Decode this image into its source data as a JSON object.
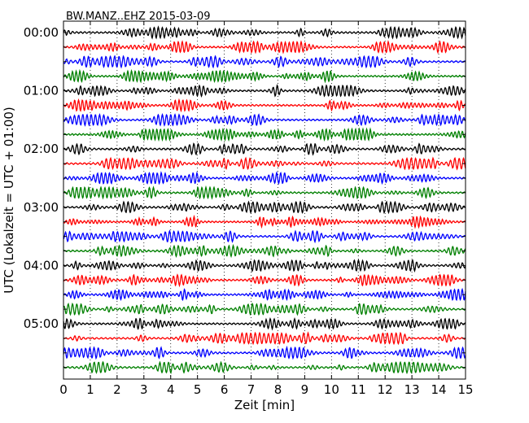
{
  "chart_data": {
    "type": "line",
    "title": "BW.MANZ..EHZ 2015-03-09",
    "xlabel": "Zeit  [min]",
    "ylabel": "UTC (Lokalzeit = UTC + 01:00)",
    "xlim": [
      0,
      15
    ],
    "x_ticks": [
      "0",
      "1",
      "2",
      "3",
      "4",
      "5",
      "6",
      "7",
      "8",
      "9",
      "10",
      "11",
      "12",
      "13",
      "14",
      "15"
    ],
    "y_tick_labels": [
      "00:00",
      "01:00",
      "02:00",
      "03:00",
      "04:00",
      "05:00"
    ],
    "grid": "vertical dotted at each minute",
    "trace_interval_minutes": 15,
    "trace_count": 24,
    "trace_colors": [
      "#000000",
      "#ff0000",
      "#0000ff",
      "#008000"
    ],
    "series": [
      {
        "label_time": "00:00",
        "start": "00:00"
      },
      {
        "start": "00:15"
      },
      {
        "start": "00:30"
      },
      {
        "start": "00:45"
      },
      {
        "label_time": "01:00",
        "start": "01:00"
      },
      {
        "start": "01:15"
      },
      {
        "start": "01:30"
      },
      {
        "start": "01:45"
      },
      {
        "label_time": "02:00",
        "start": "02:00"
      },
      {
        "start": "02:15"
      },
      {
        "start": "02:30"
      },
      {
        "start": "02:45"
      },
      {
        "label_time": "03:00",
        "start": "03:00"
      },
      {
        "start": "03:15"
      },
      {
        "start": "03:30"
      },
      {
        "start": "03:45"
      },
      {
        "label_time": "04:00",
        "start": "04:00"
      },
      {
        "start": "04:15"
      },
      {
        "start": "04:30"
      },
      {
        "start": "04:45"
      },
      {
        "label_time": "05:00",
        "start": "05:00"
      },
      {
        "start": "05:15"
      },
      {
        "start": "05:30"
      },
      {
        "start": "05:45"
      }
    ]
  }
}
